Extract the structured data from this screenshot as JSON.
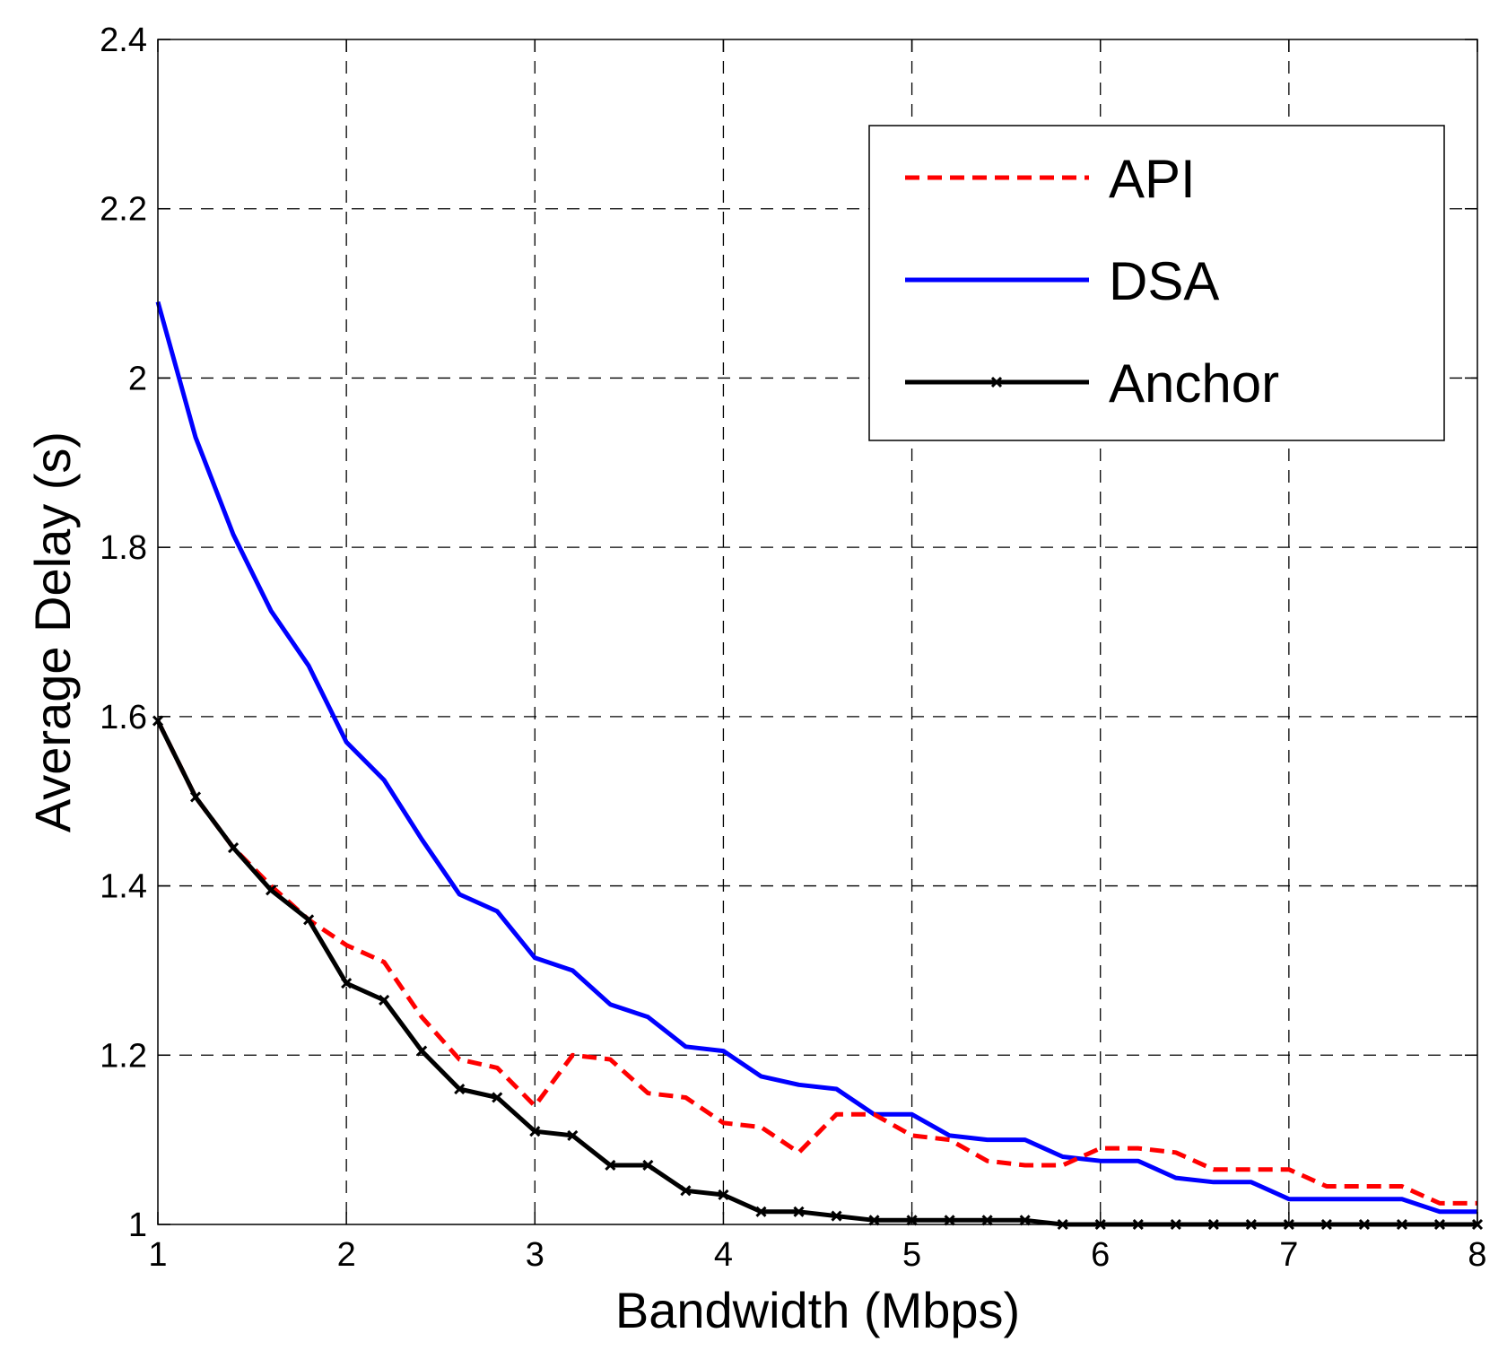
{
  "chart_data": {
    "type": "line",
    "title": "",
    "xlabel": "Bandwidth (Mbps)",
    "ylabel": "Average Delay (s)",
    "xlim": [
      1,
      8
    ],
    "ylim": [
      1,
      2.4
    ],
    "xticks": [
      1,
      2,
      3,
      4,
      5,
      6,
      7,
      8
    ],
    "yticks": [
      1,
      1.2,
      1.4,
      1.6,
      1.8,
      2,
      2.2,
      2.4
    ],
    "xtick_labels": [
      "1",
      "2",
      "3",
      "4",
      "5",
      "6",
      "7",
      "8"
    ],
    "ytick_labels": [
      "1",
      "1.2",
      "1.4",
      "1.6",
      "1.8",
      "2",
      "2.2",
      "2.4"
    ],
    "grid": true,
    "legend_position": "top-right",
    "x": [
      1.0,
      1.2,
      1.4,
      1.6,
      1.8,
      2.0,
      2.2,
      2.4,
      2.6,
      2.8,
      3.0,
      3.2,
      3.4,
      3.6,
      3.8,
      4.0,
      4.2,
      4.4,
      4.6,
      4.8,
      5.0,
      5.2,
      5.4,
      5.6,
      5.8,
      6.0,
      6.2,
      6.4,
      6.6,
      6.8,
      7.0,
      7.2,
      7.4,
      7.6,
      7.8,
      8.0
    ],
    "series": [
      {
        "name": "API",
        "color": "#ff0000",
        "style": "dashed",
        "marker": "none",
        "values": [
          1.595,
          1.505,
          1.445,
          1.4,
          1.36,
          1.33,
          1.31,
          1.245,
          1.195,
          1.185,
          1.14,
          1.2,
          1.195,
          1.155,
          1.15,
          1.12,
          1.115,
          1.085,
          1.13,
          1.13,
          1.105,
          1.1,
          1.075,
          1.07,
          1.07,
          1.09,
          1.09,
          1.085,
          1.065,
          1.065,
          1.065,
          1.045,
          1.045,
          1.045,
          1.025,
          1.025
        ]
      },
      {
        "name": "DSA",
        "color": "#0000ff",
        "style": "solid",
        "marker": "none",
        "values": [
          2.09,
          1.93,
          1.815,
          1.725,
          1.66,
          1.57,
          1.525,
          1.455,
          1.39,
          1.37,
          1.315,
          1.3,
          1.26,
          1.245,
          1.21,
          1.205,
          1.175,
          1.165,
          1.16,
          1.13,
          1.13,
          1.105,
          1.1,
          1.1,
          1.08,
          1.075,
          1.075,
          1.055,
          1.05,
          1.05,
          1.03,
          1.03,
          1.03,
          1.03,
          1.015,
          1.015
        ]
      },
      {
        "name": "Anchor",
        "color": "#000000",
        "style": "solid",
        "marker": "x",
        "values": [
          1.595,
          1.505,
          1.445,
          1.395,
          1.36,
          1.285,
          1.265,
          1.205,
          1.16,
          1.15,
          1.11,
          1.105,
          1.07,
          1.07,
          1.04,
          1.035,
          1.015,
          1.015,
          1.01,
          1.005,
          1.005,
          1.005,
          1.005,
          1.005,
          1.0,
          1.0,
          1.0,
          1.0,
          1.0,
          1.0,
          1.0,
          1.0,
          1.0,
          1.0,
          1.0,
          1.0
        ]
      }
    ]
  }
}
